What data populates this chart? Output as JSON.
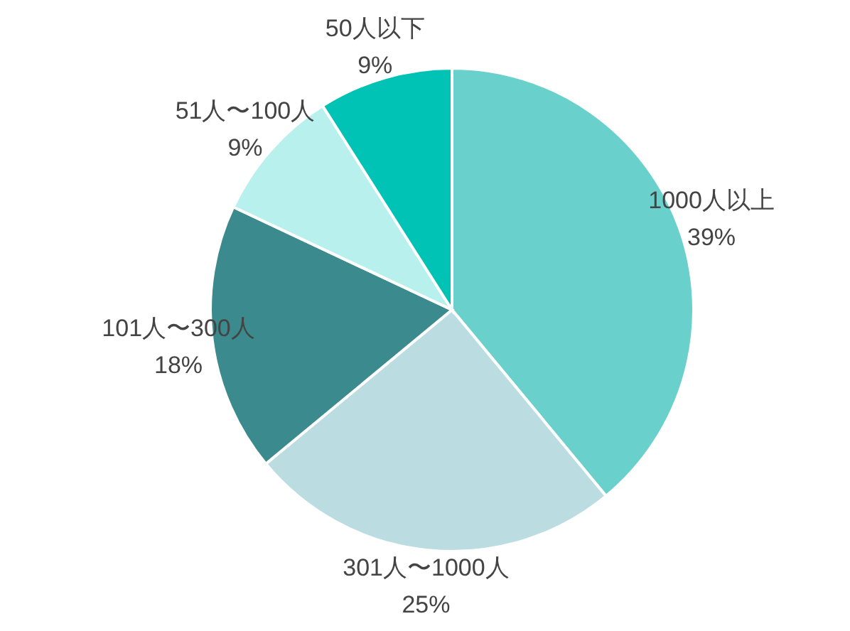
{
  "chart_data": {
    "type": "pie",
    "categories": [
      "1000人以上",
      "301人〜1000人",
      "101人〜300人",
      "51人〜100人",
      "50人以下"
    ],
    "values": [
      39,
      25,
      18,
      9,
      9
    ],
    "value_labels": [
      "39%",
      "25%",
      "18%",
      "9%",
      "9%"
    ],
    "colors": [
      "#6ad0cc",
      "#bbdde2",
      "#3b8a8e",
      "#b8f0ee",
      "#00c2b5"
    ],
    "legend": false
  }
}
